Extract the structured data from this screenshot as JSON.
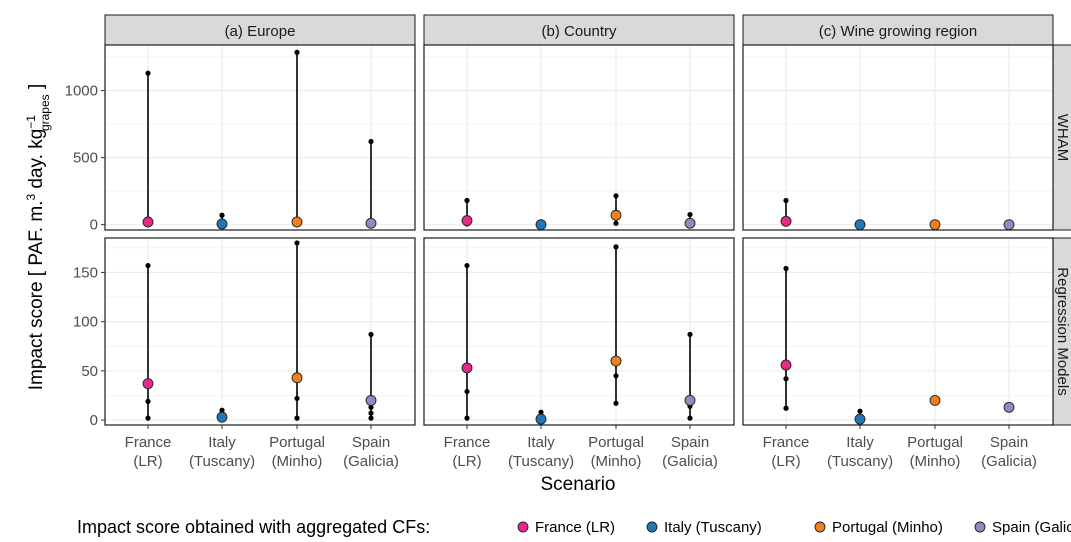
{
  "chart_data": {
    "type": "scatter",
    "subtype": "faceted range plot (min-max whisker with intermediate points and aggregated CF marker)",
    "xlabel": "Scenario",
    "ylabel_main": "Impact score [ PAF. m.",
    "ylabel_sup1": "3",
    "ylabel_mid": " day. kg",
    "ylabel_sup2": "−1",
    "ylabel_sub": "grapes",
    "ylabel_end": " ]",
    "columns": [
      "(a) Europe",
      "(b) Country",
      "(c) Wine growing region"
    ],
    "rows": [
      "WHAM",
      "Regression Models"
    ],
    "categories": [
      {
        "line1": "France",
        "line2": "(LR)"
      },
      {
        "line1": "Italy",
        "line2": "(Tuscany)"
      },
      {
        "line1": "Portugal",
        "line2": "(Minho)"
      },
      {
        "line1": "Spain",
        "line2": "(Galicia)"
      }
    ],
    "row_scales": [
      {
        "ylim": [
          -40,
          1340
        ],
        "ticks": [
          0,
          500,
          1000
        ]
      },
      {
        "ylim": [
          -5,
          185
        ],
        "ticks": [
          0,
          50,
          100,
          150
        ]
      }
    ],
    "grid": true,
    "legend": {
      "position": "bottom",
      "title": "Impact score obtained with aggregated CFs:",
      "entries": [
        "France (LR)",
        "Italy (Tuscany)",
        "Portugal (Minho)",
        "Spain (Galicia)"
      ]
    },
    "series_colors": [
      "#e7298a",
      "#1f78b4",
      "#f07f1f",
      "#8a8cc2"
    ],
    "panels": [
      {
        "row": 0,
        "col": 0,
        "data": [
          {
            "min": 0,
            "max": 1130,
            "extra": [],
            "agg": 20
          },
          {
            "min": 0,
            "max": 70,
            "extra": [],
            "agg": 5
          },
          {
            "min": 0,
            "max": 1285,
            "extra": [],
            "agg": 20
          },
          {
            "min": 0,
            "max": 620,
            "extra": [],
            "agg": 10
          }
        ]
      },
      {
        "row": 0,
        "col": 1,
        "data": [
          {
            "min": 5,
            "max": 180,
            "extra": [],
            "agg": 30
          },
          {
            "min": 0,
            "max": 0,
            "extra": [],
            "agg": 0
          },
          {
            "min": 10,
            "max": 215,
            "extra": [],
            "agg": 70
          },
          {
            "min": 5,
            "max": 75,
            "extra": [],
            "agg": 10
          }
        ]
      },
      {
        "row": 0,
        "col": 2,
        "data": [
          {
            "min": 10,
            "max": 180,
            "extra": [],
            "agg": 25
          },
          {
            "min": 0,
            "max": 0,
            "extra": [],
            "agg": 0
          },
          {
            "min": 0,
            "max": 0,
            "extra": [],
            "agg": 0
          },
          {
            "min": 0,
            "max": 0,
            "extra": [],
            "agg": 0
          }
        ]
      },
      {
        "row": 1,
        "col": 0,
        "data": [
          {
            "min": 2,
            "max": 157,
            "extra": [
              19
            ],
            "agg": 37
          },
          {
            "min": 1,
            "max": 10,
            "extra": [
              5
            ],
            "agg": 3
          },
          {
            "min": 2,
            "max": 180,
            "extra": [
              22
            ],
            "agg": 43
          },
          {
            "min": 2,
            "max": 87,
            "extra": [
              7,
              13
            ],
            "agg": 20
          }
        ]
      },
      {
        "row": 1,
        "col": 1,
        "data": [
          {
            "min": 2,
            "max": 157,
            "extra": [
              29
            ],
            "agg": 53
          },
          {
            "min": 1,
            "max": 8,
            "extra": [],
            "agg": 1
          },
          {
            "min": 17,
            "max": 176,
            "extra": [
              45
            ],
            "agg": 60
          },
          {
            "min": 2,
            "max": 87,
            "extra": [
              14
            ],
            "agg": 20
          }
        ]
      },
      {
        "row": 1,
        "col": 2,
        "data": [
          {
            "min": 12,
            "max": 154,
            "extra": [
              42
            ],
            "agg": 56
          },
          {
            "min": 1,
            "max": 9,
            "extra": [],
            "agg": 1
          },
          {
            "min": 20,
            "max": 20,
            "extra": [],
            "agg": 20
          },
          {
            "min": 12,
            "max": 12,
            "extra": [],
            "agg": 13
          }
        ]
      }
    ]
  }
}
